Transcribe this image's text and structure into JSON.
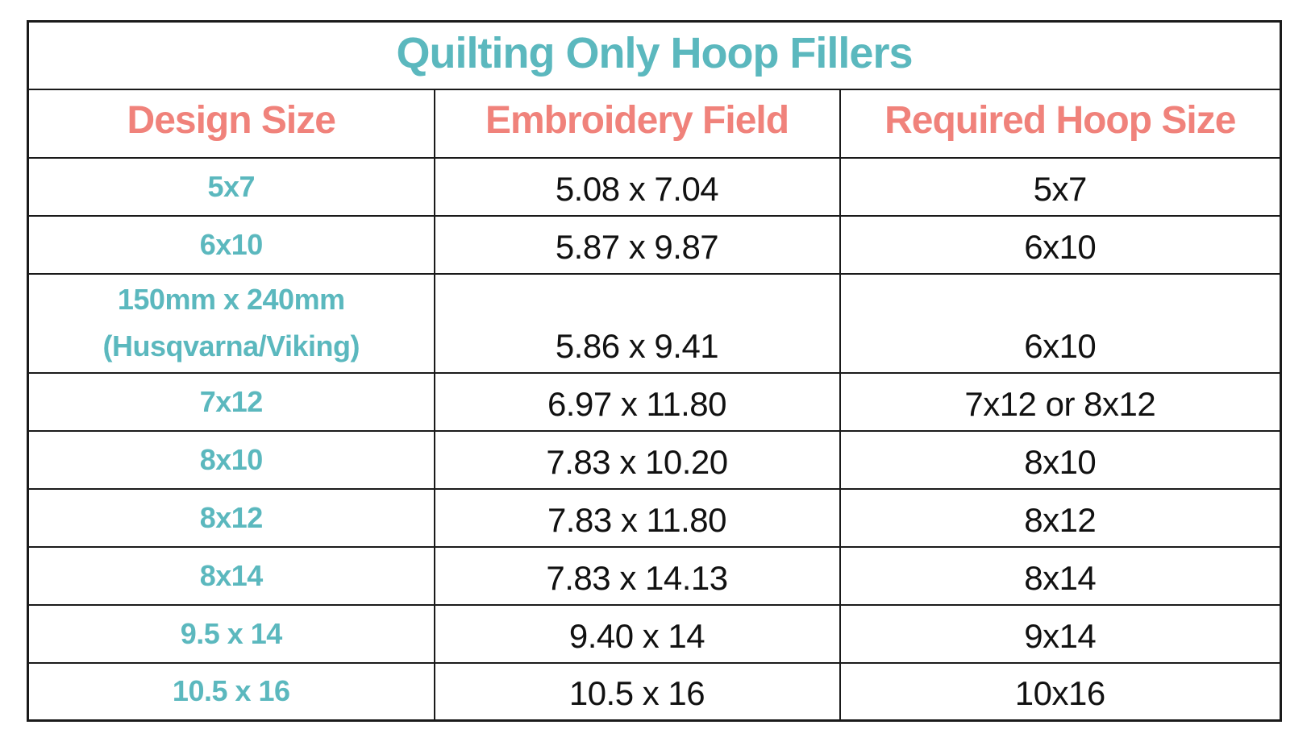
{
  "table": {
    "title": "Quilting Only Hoop Fillers",
    "columns": [
      {
        "key": "design",
        "label": "Design Size"
      },
      {
        "key": "field",
        "label": "Embroidery Field"
      },
      {
        "key": "hoop",
        "label": "Required Hoop Size"
      }
    ],
    "rows": [
      {
        "design": "5x7",
        "field": "5.08 x 7.04",
        "hoop": "5x7"
      },
      {
        "design": "6x10",
        "field": "5.87 x 9.87",
        "hoop": "6x10"
      },
      {
        "design": "150mm x 240mm (Husqvarna/Viking)",
        "field": "5.86 x 9.41",
        "hoop": "6x10"
      },
      {
        "design": "7x12",
        "field": "6.97 x 11.80",
        "hoop": "7x12 or 8x12"
      },
      {
        "design": "8x10",
        "field": "7.83 x 10.20",
        "hoop": "8x10"
      },
      {
        "design": "8x12",
        "field": "7.83 x 11.80",
        "hoop": "8x12"
      },
      {
        "design": "8x14",
        "field": "7.83 x 14.13",
        "hoop": "8x14"
      },
      {
        "design": "9.5 x 14",
        "field": "9.40 x 14",
        "hoop": "9x14"
      },
      {
        "design": "10.5 x 16",
        "field": "10.5 x 16",
        "hoop": "10x16"
      }
    ],
    "colors": {
      "title_teal": "#5BB8BE",
      "header_coral": "#F0827B",
      "design_value_teal": "#5BB8BE",
      "value_black": "#111111",
      "border": "#1a1a1a",
      "background": "#ffffff"
    }
  }
}
